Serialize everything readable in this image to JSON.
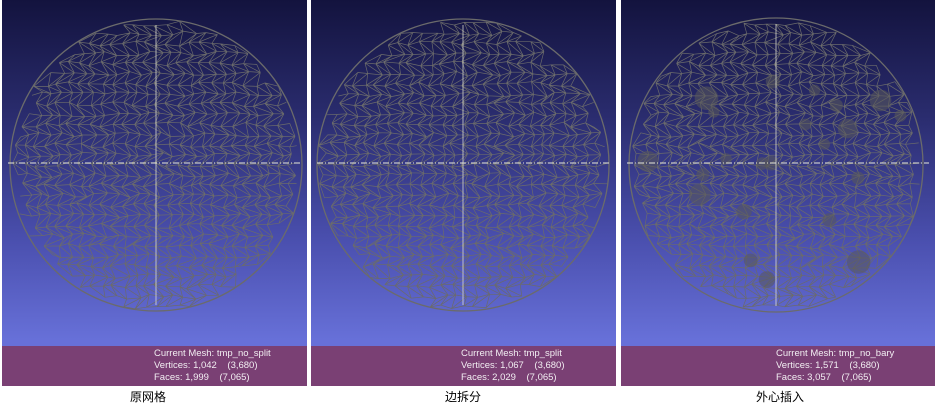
{
  "panels": [
    {
      "caption": "原网格",
      "info": {
        "current_mesh": "Current Mesh: tmp_no_split",
        "vertices": "Vertices: 1,042    (3,680)",
        "faces": "Faces: 1,999    (7,065)"
      }
    },
    {
      "caption": "边拆分",
      "info": {
        "current_mesh": "Current Mesh: tmp_split",
        "vertices": "Vertices: 1,067    (3,680)",
        "faces": "Faces: 2,029    (7,065)"
      }
    },
    {
      "caption": "外心插入",
      "info": {
        "current_mesh": "Current Mesh: tmp_no_bary",
        "vertices": "Vertices: 1,571    (3,680)",
        "faces": "Faces: 3,057    (7,065)"
      }
    }
  ],
  "colors": {
    "mesh_line": "#6b6b6b",
    "axis_line": "#e8e8d8",
    "info_bar": "#7a4074"
  }
}
